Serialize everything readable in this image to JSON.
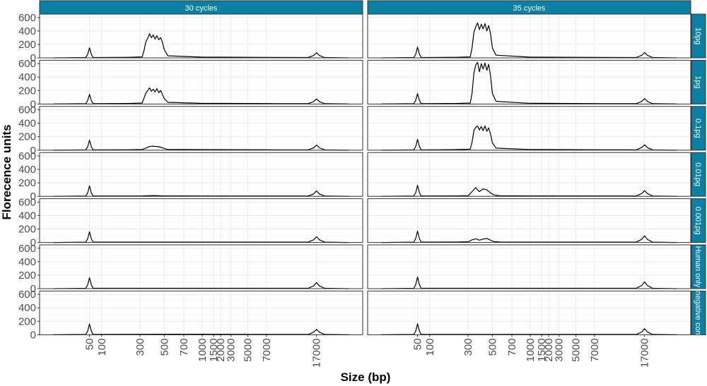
{
  "chart_data": {
    "type": "line",
    "xlabel": "Size (bp)",
    "ylabel": "Florecence units",
    "ylim": [
      0,
      650
    ],
    "y_ticks": [
      0,
      200,
      400,
      600
    ],
    "y_tick_labels": [
      "0",
      "200",
      "400",
      "600"
    ],
    "x_ticks": [
      50,
      100,
      300,
      500,
      700,
      1000,
      1500,
      2000,
      3000,
      5000,
      7000,
      17000
    ],
    "x_tick_labels": [
      "50",
      "100",
      "300",
      "500",
      "700",
      "1000",
      "1500",
      "2000",
      "3000",
      "5000",
      "7000",
      "17000"
    ],
    "x_tick_index": [
      9.7,
      13.0,
      23.4,
      30.0,
      35.3,
      40.3,
      43.4,
      45.3,
      48.1,
      52.7,
      57.7,
      71.3
    ],
    "x_index_range": [
      0,
      80
    ],
    "grid": true,
    "columns": [
      "30 cycles",
      "35 cycles"
    ],
    "rows": [
      "10pg",
      "1pg",
      "0.1pg",
      "0.01pg",
      "0.001pg",
      "Human only",
      "negative con"
    ],
    "ladder": {
      "lower_marker": {
        "index": 9.7,
        "height_30": [
          150,
          145,
          150,
          155,
          160,
          165,
          160
        ],
        "height_35": [
          160,
          155,
          160,
          165,
          170,
          175,
          165
        ]
      },
      "upper_marker": {
        "index": 71.3,
        "height_30": [
          75,
          75,
          75,
          80,
          85,
          90,
          80
        ],
        "height_35": [
          80,
          80,
          80,
          85,
          100,
          100,
          90
        ]
      }
    },
    "series": [
      {
        "column": "30 cycles",
        "row": "10pg",
        "x": [
          0,
          8.7,
          9.2,
          9.7,
          10.2,
          10.7,
          12,
          20,
          24,
          24.5,
          25,
          25.5,
          26,
          26.5,
          27,
          27.5,
          28,
          28.5,
          29,
          29.5,
          30,
          31,
          40,
          60,
          69,
          70.5,
          71.3,
          72.1,
          73.5,
          80
        ],
        "y": [
          0,
          5,
          50,
          150,
          50,
          5,
          5,
          8,
          15,
          110,
          240,
          290,
          360,
          300,
          340,
          280,
          330,
          270,
          300,
          230,
          120,
          30,
          12,
          6,
          5,
          35,
          75,
          35,
          5,
          0
        ]
      },
      {
        "column": "30 cycles",
        "row": "1pg",
        "x": [
          0,
          8.7,
          9.2,
          9.7,
          10.2,
          10.7,
          12,
          20,
          24,
          24.5,
          25,
          25.5,
          26,
          26.5,
          27,
          27.5,
          28,
          28.5,
          29,
          29.5,
          30,
          31,
          40,
          60,
          69,
          70.5,
          71.3,
          72.1,
          73.5,
          80
        ],
        "y": [
          0,
          5,
          50,
          145,
          50,
          5,
          5,
          8,
          15,
          90,
          160,
          200,
          240,
          190,
          220,
          180,
          230,
          170,
          200,
          140,
          80,
          25,
          10,
          6,
          5,
          35,
          75,
          35,
          5,
          0
        ]
      },
      {
        "column": "30 cycles",
        "row": "0.1pg",
        "x": [
          0,
          8.7,
          9.2,
          9.7,
          10.2,
          10.7,
          12,
          20,
          24,
          25,
          26,
          27,
          28,
          29,
          30,
          31,
          40,
          60,
          69,
          70.5,
          71.3,
          72.1,
          73.5,
          80
        ],
        "y": [
          0,
          5,
          50,
          150,
          50,
          5,
          5,
          6,
          10,
          30,
          55,
          60,
          55,
          45,
          25,
          10,
          8,
          5,
          5,
          35,
          75,
          35,
          5,
          0
        ]
      },
      {
        "column": "30 cycles",
        "row": "0.01pg",
        "x": [
          0,
          8.7,
          9.2,
          9.7,
          10.2,
          10.7,
          12,
          24,
          27,
          30,
          40,
          69,
          70.5,
          71.3,
          72.1,
          73.5,
          80
        ],
        "y": [
          0,
          5,
          50,
          155,
          50,
          5,
          5,
          6,
          12,
          6,
          5,
          5,
          35,
          80,
          35,
          5,
          0
        ]
      },
      {
        "column": "30 cycles",
        "row": "0.001pg",
        "x": [
          0,
          8.7,
          9.2,
          9.7,
          10.2,
          10.7,
          12,
          40,
          69,
          70.5,
          71.3,
          72.1,
          73.5,
          80
        ],
        "y": [
          0,
          5,
          55,
          160,
          55,
          5,
          5,
          5,
          5,
          40,
          85,
          40,
          5,
          0
        ]
      },
      {
        "column": "30 cycles",
        "row": "Human only",
        "x": [
          0,
          8.7,
          9.2,
          9.7,
          10.2,
          10.7,
          12,
          40,
          69,
          70.5,
          71.3,
          72.1,
          73.5,
          80
        ],
        "y": [
          0,
          5,
          55,
          165,
          55,
          5,
          5,
          5,
          5,
          40,
          90,
          40,
          5,
          0
        ]
      },
      {
        "column": "30 cycles",
        "row": "negative con",
        "x": [
          0,
          8.7,
          9.2,
          9.7,
          10.2,
          10.7,
          12,
          40,
          69,
          70.5,
          71.3,
          72.1,
          73.5,
          80
        ],
        "y": [
          0,
          5,
          55,
          160,
          55,
          5,
          5,
          8,
          5,
          38,
          80,
          38,
          5,
          0
        ]
      },
      {
        "column": "35 cycles",
        "row": "10pg",
        "x": [
          0,
          8.7,
          9.2,
          9.7,
          10.2,
          10.7,
          12,
          20,
          24,
          24.5,
          25,
          25.5,
          26,
          26.5,
          27,
          27.5,
          28,
          28.5,
          29,
          29.5,
          30,
          31,
          40,
          60,
          69,
          70.5,
          71.3,
          72.1,
          73.5,
          80
        ],
        "y": [
          0,
          5,
          55,
          160,
          55,
          5,
          5,
          8,
          15,
          150,
          380,
          460,
          520,
          420,
          500,
          430,
          510,
          400,
          480,
          360,
          150,
          40,
          12,
          6,
          5,
          38,
          80,
          38,
          5,
          0
        ]
      },
      {
        "column": "35 cycles",
        "row": "1pg",
        "x": [
          0,
          8.7,
          9.2,
          9.7,
          10.2,
          10.7,
          12,
          20,
          24,
          24.5,
          25,
          25.5,
          26,
          26.5,
          27,
          27.5,
          28,
          28.5,
          29,
          29.5,
          30,
          31,
          40,
          60,
          69,
          70.5,
          71.3,
          72.1,
          73.5,
          80
        ],
        "y": [
          0,
          5,
          55,
          155,
          55,
          5,
          5,
          8,
          15,
          160,
          460,
          580,
          620,
          480,
          600,
          520,
          610,
          500,
          590,
          420,
          160,
          40,
          12,
          6,
          5,
          38,
          80,
          38,
          5,
          0
        ]
      },
      {
        "column": "35 cycles",
        "row": "0.1pg",
        "x": [
          0,
          8.7,
          9.2,
          9.7,
          10.2,
          10.7,
          12,
          20,
          24,
          24.5,
          25,
          25.5,
          26,
          26.5,
          27,
          27.5,
          28,
          28.5,
          29,
          29.5,
          30,
          31,
          40,
          60,
          69,
          70.5,
          71.3,
          72.1,
          73.5,
          80
        ],
        "y": [
          0,
          5,
          55,
          160,
          55,
          5,
          5,
          8,
          15,
          120,
          290,
          340,
          360,
          300,
          350,
          290,
          360,
          280,
          330,
          240,
          110,
          30,
          10,
          6,
          5,
          38,
          80,
          38,
          5,
          0
        ]
      },
      {
        "column": "35 cycles",
        "row": "0.01pg",
        "x": [
          0,
          8.7,
          9.2,
          9.7,
          10.2,
          10.7,
          12,
          20,
          23.5,
          24.5,
          25.5,
          26,
          26.5,
          27.5,
          28.5,
          29.5,
          30.5,
          32,
          40,
          69,
          70.5,
          71.3,
          72.1,
          73.5,
          80
        ],
        "y": [
          0,
          5,
          55,
          165,
          55,
          5,
          5,
          6,
          10,
          70,
          130,
          95,
          70,
          110,
          95,
          50,
          20,
          8,
          6,
          5,
          40,
          85,
          40,
          5,
          0
        ]
      },
      {
        "column": "35 cycles",
        "row": "0.001pg",
        "x": [
          0,
          8.7,
          9.2,
          9.7,
          10.2,
          10.7,
          12,
          20,
          23.5,
          24.5,
          25.5,
          26.5,
          27.5,
          28.5,
          29.5,
          30.5,
          32,
          40,
          69,
          70.5,
          71.3,
          72.1,
          73.5,
          80
        ],
        "y": [
          0,
          5,
          60,
          170,
          60,
          5,
          5,
          6,
          10,
          40,
          55,
          35,
          50,
          60,
          35,
          12,
          6,
          5,
          5,
          45,
          100,
          45,
          5,
          0
        ]
      },
      {
        "column": "35 cycles",
        "row": "Human only",
        "x": [
          0,
          8.7,
          9.2,
          9.7,
          10.2,
          10.7,
          12,
          40,
          69,
          70.5,
          71.3,
          72.1,
          73.5,
          80
        ],
        "y": [
          0,
          5,
          60,
          175,
          60,
          5,
          5,
          5,
          5,
          45,
          100,
          45,
          5,
          0
        ]
      },
      {
        "column": "35 cycles",
        "row": "negative con",
        "x": [
          0,
          8.7,
          9.2,
          9.7,
          10.2,
          10.7,
          12,
          40,
          69,
          70.5,
          71.3,
          72.1,
          73.5,
          80
        ],
        "y": [
          0,
          5,
          55,
          165,
          55,
          5,
          5,
          6,
          5,
          40,
          90,
          40,
          5,
          0
        ]
      }
    ]
  },
  "colors": {
    "strip_fill": "#0b7fa4",
    "line": "#000000",
    "grid_major": "#ebebeb",
    "grid_minor": "#f5f5f5",
    "panel_border": "#333333",
    "tick_text": "#4d4d4d"
  }
}
